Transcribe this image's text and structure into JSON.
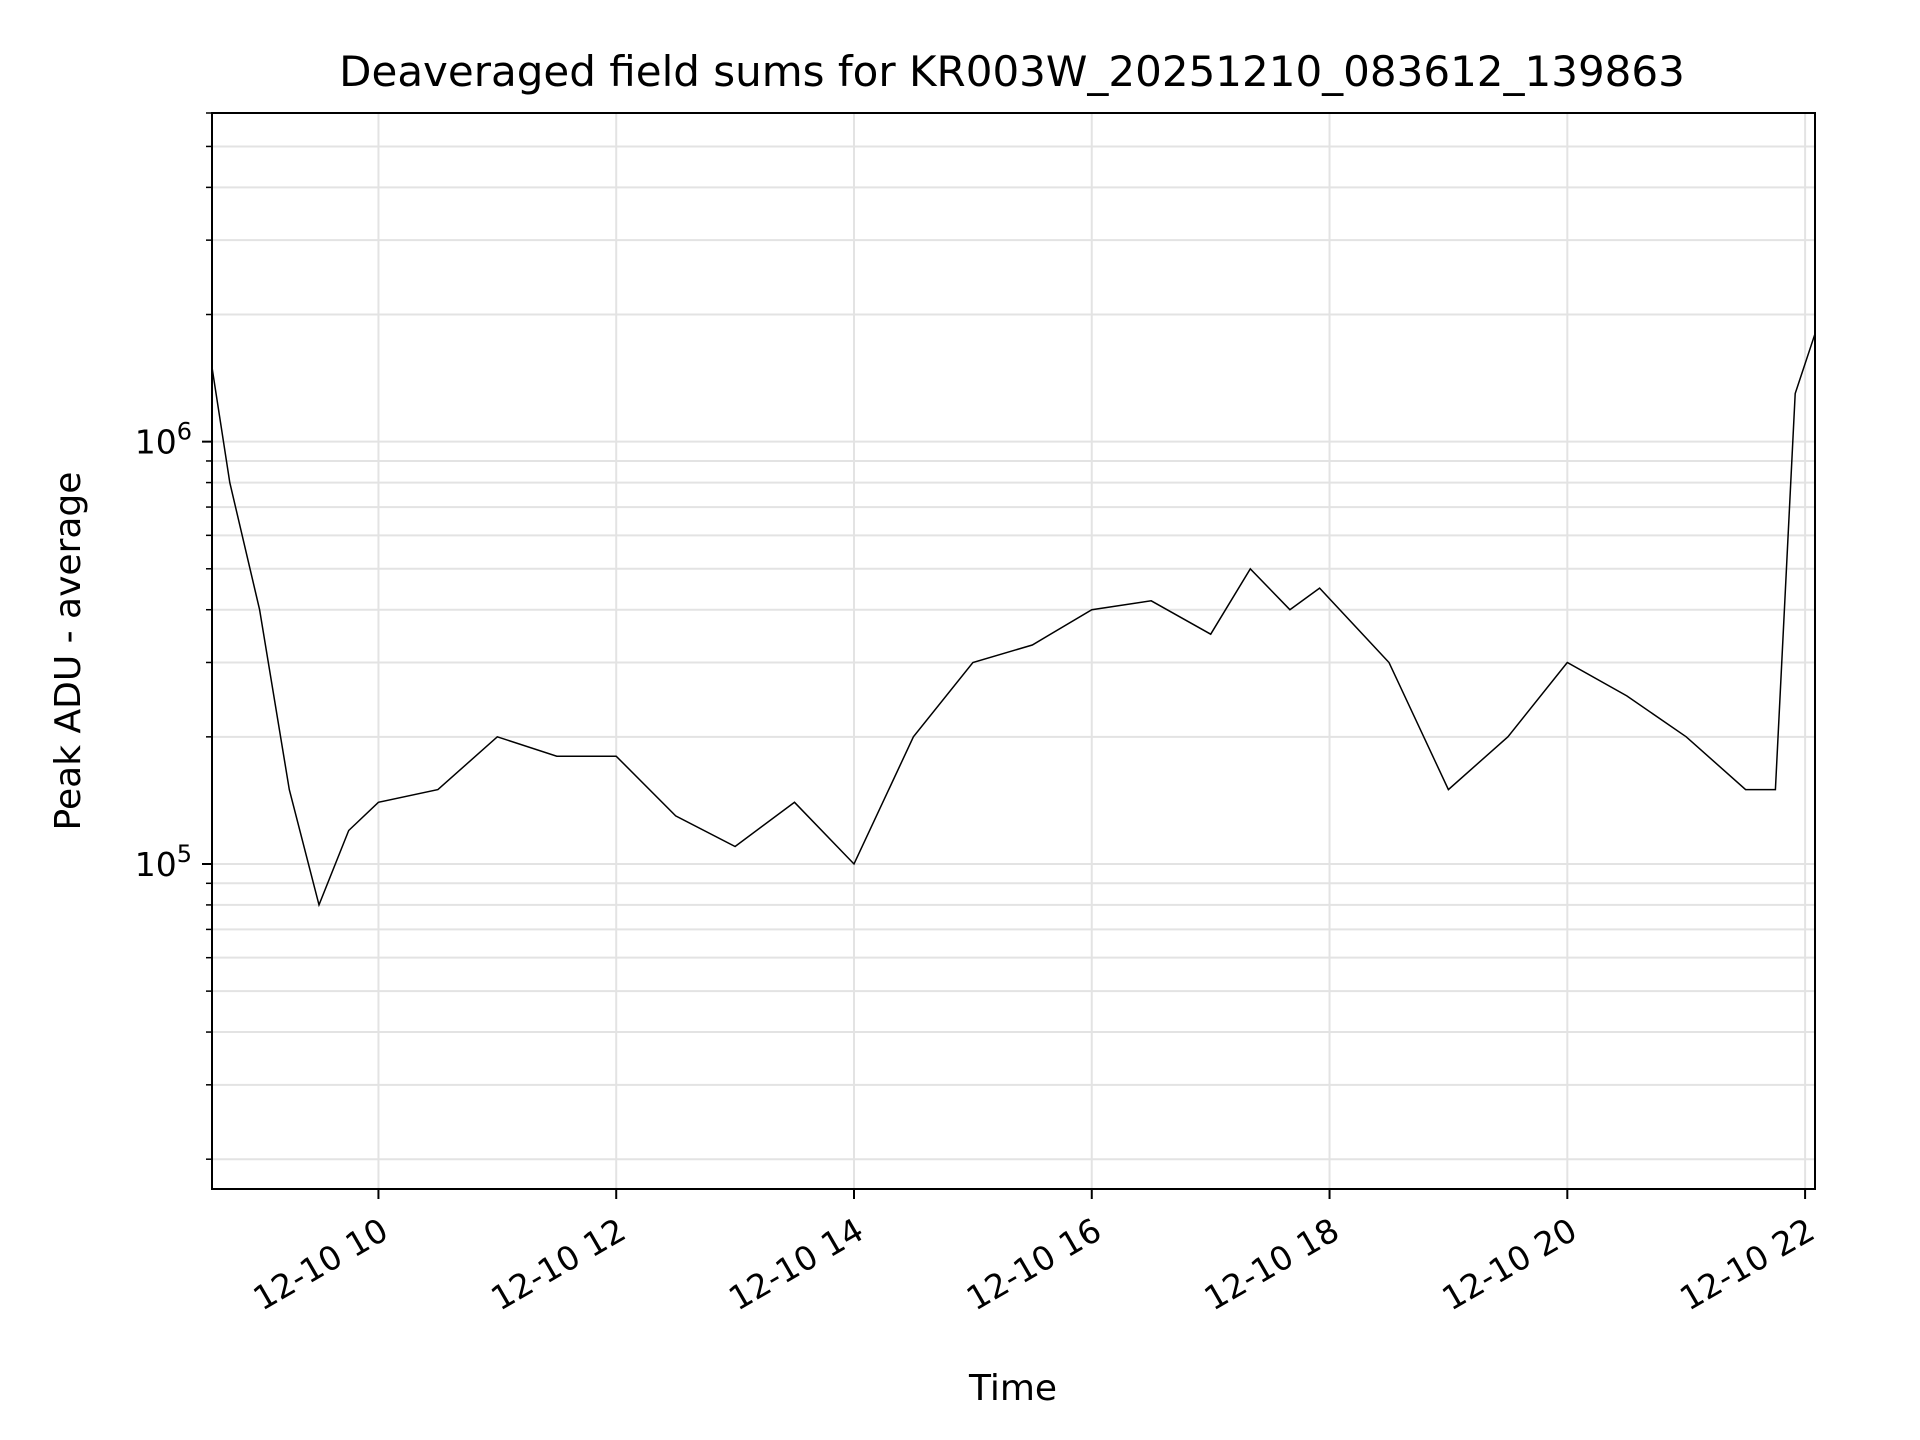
{
  "chart_data": {
    "type": "line",
    "title": "Deaveraged field sums for KR003W_20251210_083612_139863",
    "xlabel": "Time",
    "ylabel": "Peak ADU - average",
    "y_scale": "log",
    "xlim": [
      "2025-12-10 08:36",
      "2025-12-10 22:05"
    ],
    "ylim": [
      17000,
      6000000
    ],
    "grid": true,
    "legend": "none",
    "line_color": "#000000",
    "x_ticks": [
      {
        "value": "2025-12-10 10:00",
        "label": "12-10 10"
      },
      {
        "value": "2025-12-10 12:00",
        "label": "12-10 12"
      },
      {
        "value": "2025-12-10 14:00",
        "label": "12-10 14"
      },
      {
        "value": "2025-12-10 16:00",
        "label": "12-10 16"
      },
      {
        "value": "2025-12-10 18:00",
        "label": "12-10 18"
      },
      {
        "value": "2025-12-10 20:00",
        "label": "12-10 20"
      },
      {
        "value": "2025-12-10 22:00",
        "label": "12-10 22"
      }
    ],
    "y_ticks": [
      {
        "value": 100000,
        "base": "10",
        "exp": "5"
      },
      {
        "value": 1000000,
        "base": "10",
        "exp": "6"
      }
    ],
    "series": [
      {
        "x": [
          "2025-12-10 08:36",
          "2025-12-10 08:45",
          "2025-12-10 09:00",
          "2025-12-10 09:15",
          "2025-12-10 09:30",
          "2025-12-10 09:45",
          "2025-12-10 10:00",
          "2025-12-10 10:30",
          "2025-12-10 11:00",
          "2025-12-10 11:30",
          "2025-12-10 12:00",
          "2025-12-10 12:30",
          "2025-12-10 13:00",
          "2025-12-10 13:30",
          "2025-12-10 14:00",
          "2025-12-10 14:30",
          "2025-12-10 15:00",
          "2025-12-10 15:30",
          "2025-12-10 16:00",
          "2025-12-10 16:30",
          "2025-12-10 17:00",
          "2025-12-10 17:20",
          "2025-12-10 17:40",
          "2025-12-10 17:55",
          "2025-12-10 18:30",
          "2025-12-10 19:00",
          "2025-12-10 19:30",
          "2025-12-10 20:00",
          "2025-12-10 20:30",
          "2025-12-10 21:00",
          "2025-12-10 21:30",
          "2025-12-10 21:45",
          "2025-12-10 21:55",
          "2025-12-10 22:05"
        ],
        "y": [
          1500000,
          800000,
          400000,
          150000,
          80000,
          120000,
          140000,
          150000,
          200000,
          180000,
          180000,
          130000,
          110000,
          140000,
          100000,
          200000,
          300000,
          330000,
          400000,
          420000,
          350000,
          500000,
          400000,
          450000,
          300000,
          150000,
          200000,
          300000,
          250000,
          200000,
          150000,
          150000,
          1300000,
          1800000
        ]
      }
    ]
  }
}
